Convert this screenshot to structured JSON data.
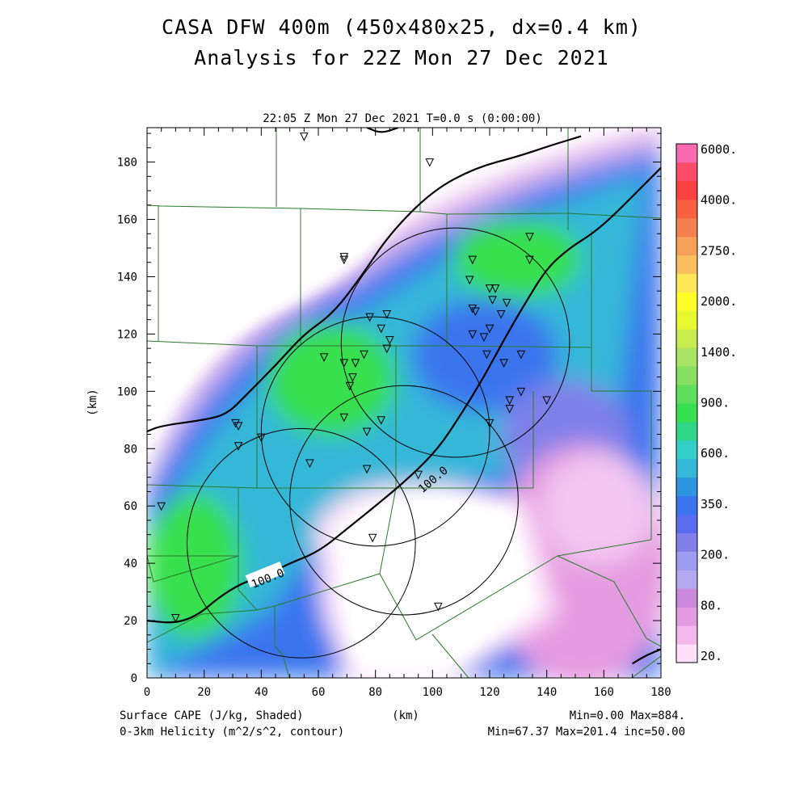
{
  "chart_data": {
    "type": "heatmap",
    "title_line1": "CASA DFW 400m (450x480x25, dx=0.4 km)",
    "title_line2": "Analysis for 22Z Mon 27 Dec 2021",
    "subtitle": "22:05 Z Mon 27 Dec 2021   T=0.0 s (0:00:00)",
    "xlabel": "(km)",
    "ylabel": "(km)",
    "xlim": [
      0,
      180
    ],
    "ylim": [
      0,
      192
    ],
    "x_ticks": [
      "0",
      "20",
      "40",
      "60",
      "80",
      "100",
      "120",
      "140",
      "160",
      "180"
    ],
    "y_ticks": [
      "0",
      "20",
      "40",
      "60",
      "80",
      "100",
      "120",
      "140",
      "160",
      "180"
    ],
    "x_tick_values": [
      0,
      20,
      40,
      60,
      80,
      100,
      120,
      140,
      160,
      180
    ],
    "y_tick_values": [
      0,
      20,
      40,
      60,
      80,
      100,
      120,
      140,
      160,
      180
    ],
    "shaded_field": "Surface CAPE (J/kg, Shaded)",
    "contour_field": "0-3km Helicity (m^2/s^2, contour)",
    "shaded_stats": "Min=0.00 Max=884.",
    "contour_stats": "Min=67.37 Max=201.4 inc=50.00",
    "contour_labels": [
      "100.0",
      "100.0"
    ],
    "colorbar_labels": [
      "6000.",
      "4000.",
      "2750.",
      "2000.",
      "1400.",
      "900.",
      "600.",
      "350.",
      "200.",
      "80.",
      "20."
    ],
    "colorbar_colors": [
      "#ffe0fa",
      "#f2b8ec",
      "#e59be0",
      "#cc88dd",
      "#b4a8f0",
      "#9d9cf0",
      "#8080e8",
      "#5b6cf0",
      "#3a74ee",
      "#2f95e0",
      "#35b7d8",
      "#33cfc7",
      "#2ed686",
      "#37e04e",
      "#5fe05a",
      "#88e060",
      "#a8e464",
      "#c8ec50",
      "#e8f830",
      "#ffff2a",
      "#fde85a",
      "#fac060",
      "#f7a05a",
      "#f58050",
      "#f86040",
      "#fb4040",
      "#fb4c6a",
      "#f96ab0"
    ],
    "radar_rings": [
      {
        "center": [
          54,
          47
        ],
        "radius": 40
      },
      {
        "center": [
          80,
          86
        ],
        "radius": 40
      },
      {
        "center": [
          90,
          62
        ],
        "radius": 40
      },
      {
        "center": [
          108,
          117
        ],
        "radius": 40
      }
    ],
    "stations": [
      [
        55,
        189
      ],
      [
        99,
        180
      ],
      [
        69,
        147
      ],
      [
        69,
        146
      ],
      [
        134,
        154
      ],
      [
        134,
        146
      ],
      [
        114,
        146
      ],
      [
        113,
        139
      ],
      [
        120,
        136
      ],
      [
        122,
        136
      ],
      [
        121,
        132
      ],
      [
        126,
        131
      ],
      [
        114,
        129
      ],
      [
        115,
        128
      ],
      [
        124,
        127
      ],
      [
        78,
        126
      ],
      [
        84,
        127
      ],
      [
        82,
        122
      ],
      [
        85,
        118
      ],
      [
        84,
        115
      ],
      [
        120,
        122
      ],
      [
        118,
        119
      ],
      [
        114,
        120
      ],
      [
        62,
        112
      ],
      [
        76,
        113
      ],
      [
        69,
        110
      ],
      [
        73,
        110
      ],
      [
        72,
        105
      ],
      [
        71,
        102
      ],
      [
        119,
        113
      ],
      [
        125,
        110
      ],
      [
        131,
        113
      ],
      [
        69,
        91
      ],
      [
        77,
        86
      ],
      [
        82,
        90
      ],
      [
        31,
        89
      ],
      [
        32,
        88
      ],
      [
        40,
        84
      ],
      [
        32,
        81
      ],
      [
        57,
        75
      ],
      [
        77,
        73
      ],
      [
        95,
        71
      ],
      [
        127,
        97
      ],
      [
        127,
        94
      ],
      [
        131,
        100
      ],
      [
        140,
        97
      ],
      [
        120,
        89
      ],
      [
        5,
        60
      ],
      [
        79,
        49
      ],
      [
        102,
        25
      ],
      [
        10,
        21
      ]
    ],
    "helicity_contours": [
      [
        [
          0,
          86
        ],
        [
          5,
          88
        ],
        [
          20,
          90
        ],
        [
          28,
          92
        ],
        [
          35,
          99
        ],
        [
          45,
          109
        ],
        [
          55,
          120
        ],
        [
          65,
          127
        ],
        [
          75,
          140
        ],
        [
          85,
          155
        ],
        [
          100,
          170
        ],
        [
          115,
          178
        ],
        [
          130,
          182
        ],
        [
          142,
          186
        ],
        [
          152,
          189
        ]
      ],
      [
        [
          0,
          20
        ],
        [
          10,
          19
        ],
        [
          18,
          22
        ],
        [
          25,
          28
        ],
        [
          33,
          33
        ],
        [
          42,
          36
        ],
        [
          50,
          40
        ],
        [
          60,
          44
        ],
        [
          70,
          52
        ],
        [
          80,
          60
        ],
        [
          92,
          70
        ],
        [
          102,
          80
        ],
        [
          110,
          92
        ],
        [
          118,
          105
        ],
        [
          125,
          118
        ],
        [
          132,
          130
        ],
        [
          140,
          143
        ],
        [
          148,
          150
        ],
        [
          156,
          155
        ],
        [
          163,
          161
        ],
        [
          172,
          170
        ],
        [
          180,
          178
        ]
      ],
      [
        [
          77,
          192
        ],
        [
          82,
          190
        ],
        [
          88,
          192
        ]
      ],
      [
        [
          170,
          5
        ],
        [
          175,
          8
        ],
        [
          180,
          10
        ]
      ]
    ]
  }
}
